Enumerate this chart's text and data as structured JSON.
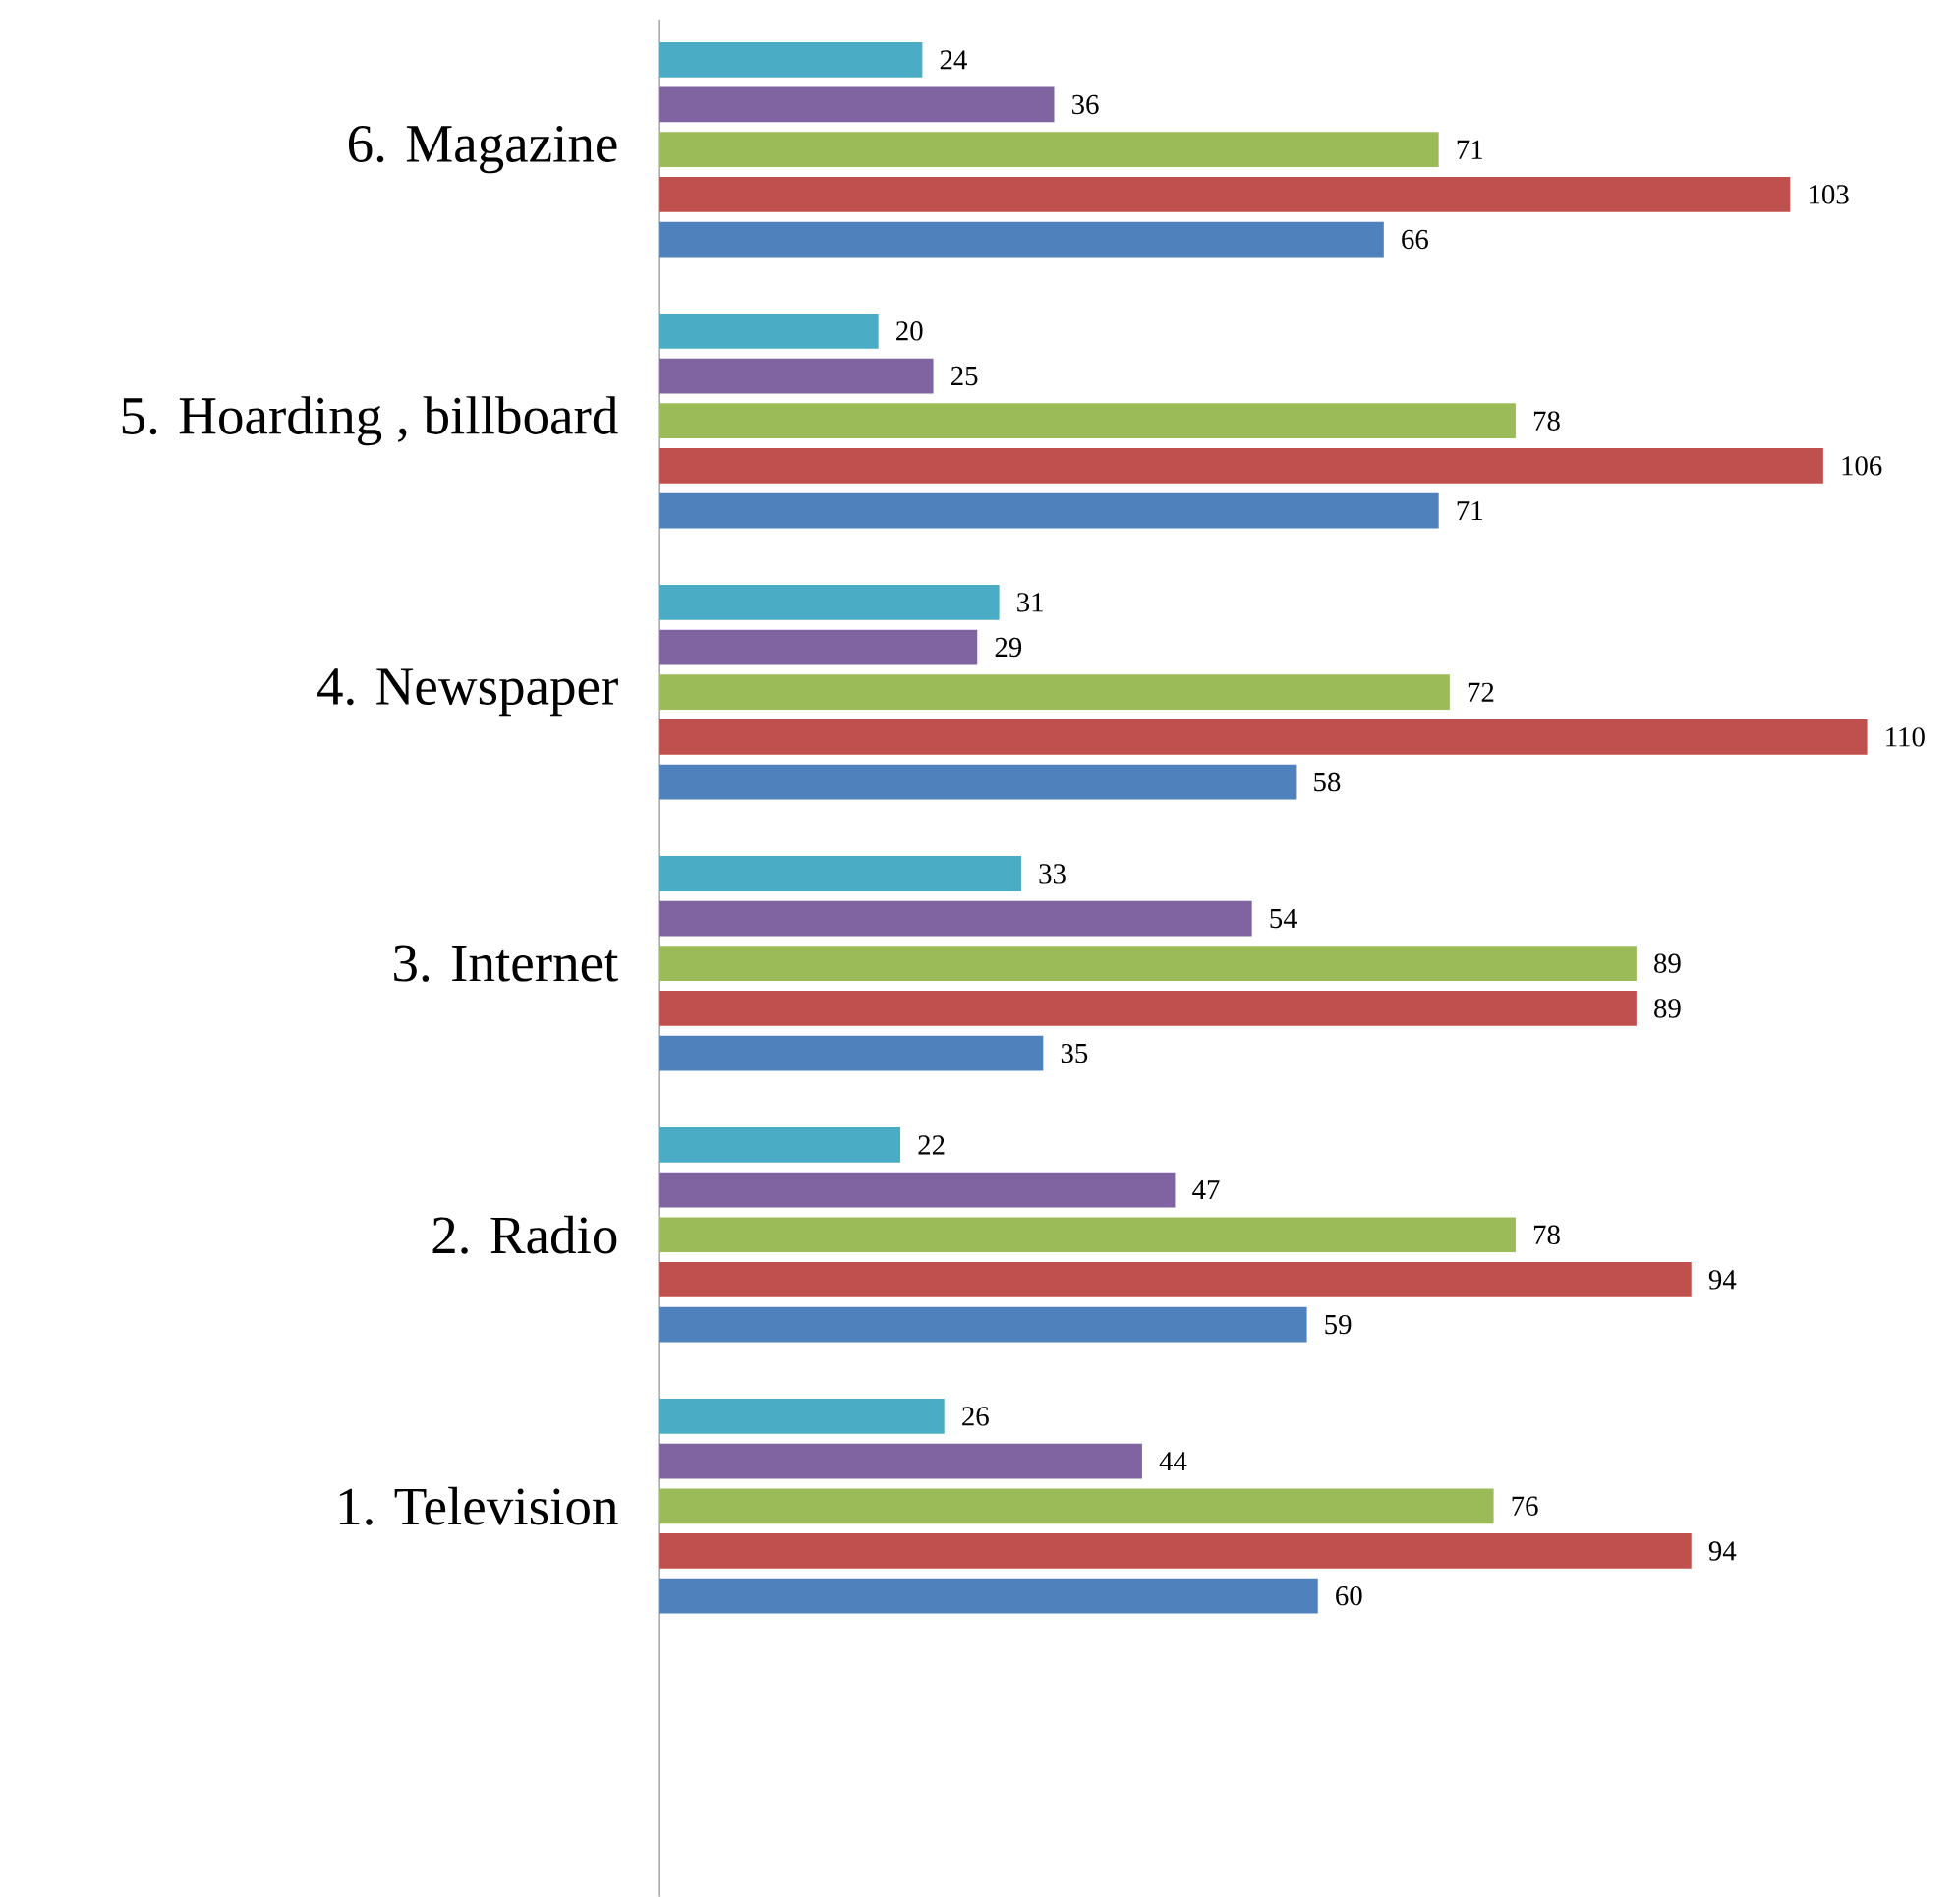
{
  "chart_data": {
    "type": "bar",
    "orientation": "horizontal",
    "data_labels": true,
    "categories": [
      "6. Magazine",
      "5. Hoarding , billboard",
      "4. Newspaper",
      "3. Internet",
      "2. Radio",
      "1. Television"
    ],
    "series": [
      {
        "color": "#4f81bd",
        "values": [
          66,
          71,
          58,
          35,
          59,
          60
        ]
      },
      {
        "color": "#c0504d",
        "values": [
          103,
          106,
          110,
          89,
          94,
          94
        ]
      },
      {
        "color": "#9bbb59",
        "values": [
          71,
          78,
          72,
          89,
          78,
          76
        ]
      },
      {
        "color": "#8064a2",
        "values": [
          36,
          25,
          29,
          54,
          47,
          44
        ]
      },
      {
        "color": "#4bacc6",
        "values": [
          24,
          20,
          31,
          33,
          22,
          26
        ]
      }
    ]
  }
}
